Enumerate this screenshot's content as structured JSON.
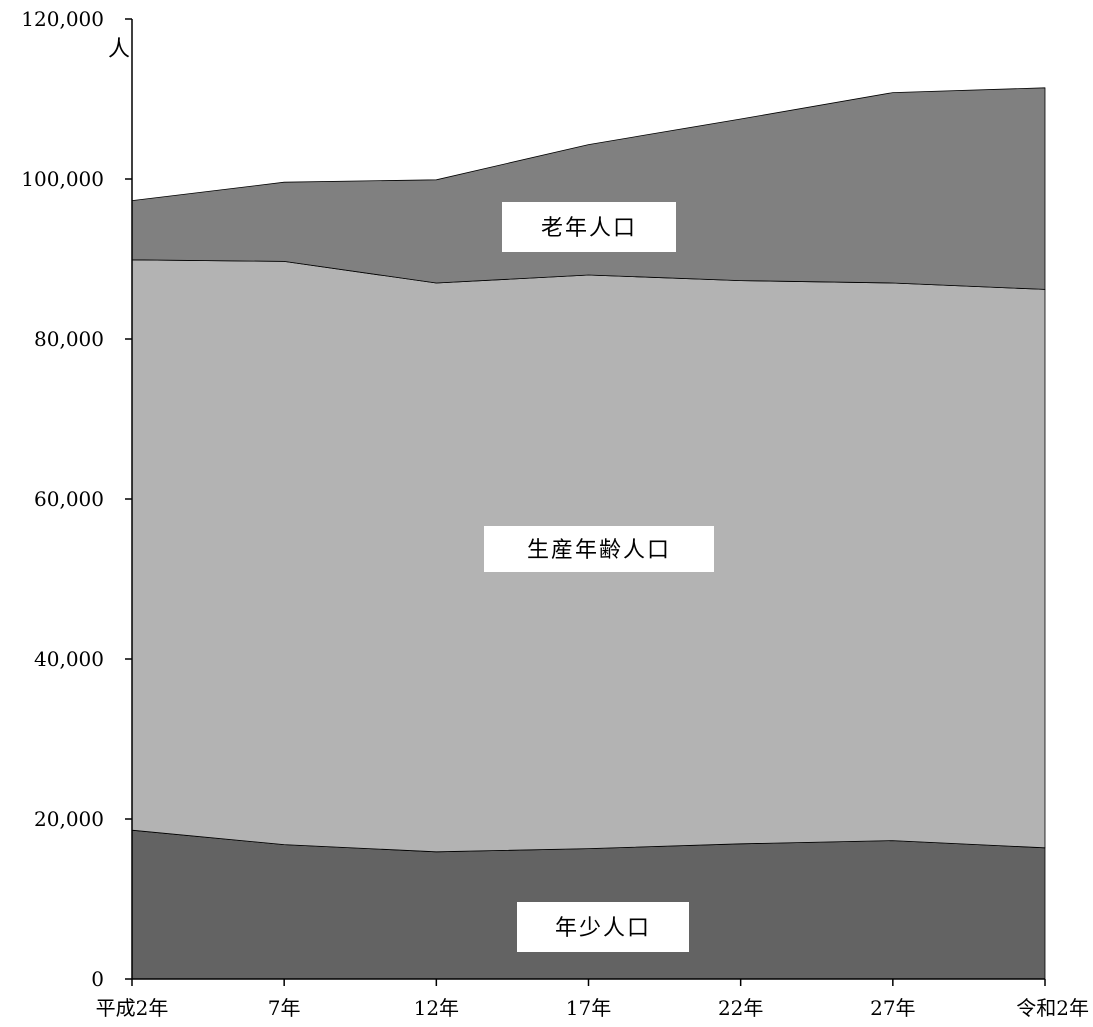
{
  "chart_data": {
    "type": "area",
    "stacked": true,
    "title": "",
    "xlabel": "",
    "ylabel": "",
    "y_unit": "人",
    "ylim": [
      0,
      120000
    ],
    "y_ticks": [
      0,
      20000,
      40000,
      60000,
      80000,
      100000,
      120000
    ],
    "y_tick_labels": [
      "0",
      "20,000",
      "40,000",
      "60,000",
      "80,000",
      "100,000",
      "120,000"
    ],
    "categories": [
      "平成2年",
      "7年",
      "12年",
      "17年",
      "22年",
      "27年",
      "令和2年"
    ],
    "grid": false,
    "legend": "none",
    "series": [
      {
        "name": "年少人口",
        "color": "#636363",
        "values": [
          18600,
          16800,
          15900,
          16300,
          16900,
          17300,
          16400
        ]
      },
      {
        "name": "生産年齢人口",
        "color": "#b3b3b3",
        "values": [
          71300,
          72900,
          71100,
          71700,
          70400,
          69700,
          69800
        ]
      },
      {
        "name": "老年人口",
        "color": "#808080",
        "values": [
          7400,
          9900,
          12900,
          16300,
          20200,
          23800,
          25200
        ]
      }
    ],
    "annotations": [
      {
        "series": "老年人口",
        "text": "老年人口"
      },
      {
        "series": "生産年齢人口",
        "text": "生産年齢人口"
      },
      {
        "series": "年少人口",
        "text": "年少人口"
      }
    ]
  }
}
